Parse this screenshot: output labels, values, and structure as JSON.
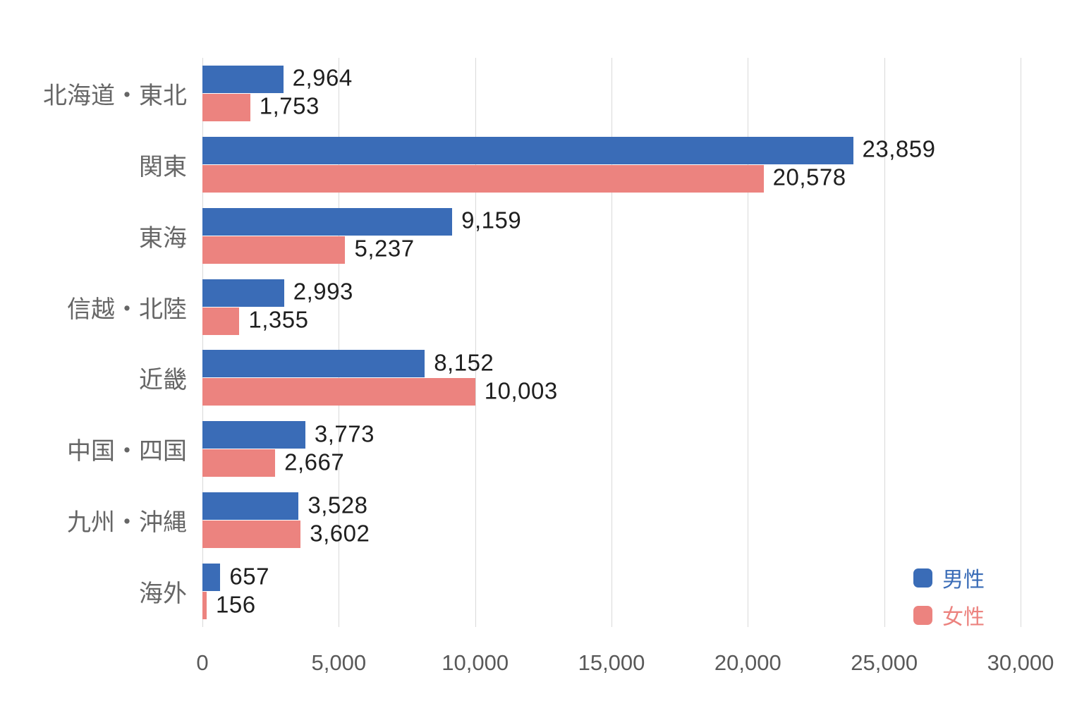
{
  "chart_data": {
    "type": "bar",
    "orientation": "horizontal",
    "title": "",
    "categories": [
      "北海道・東北",
      "関東",
      "東海",
      "信越・北陸",
      "近畿",
      "中国・四国",
      "九州・沖縄",
      "海外"
    ],
    "series": [
      {
        "name": "男性",
        "color": "#3A6CB7",
        "values": [
          2964,
          23859,
          9159,
          2993,
          8152,
          3773,
          3528,
          657
        ],
        "labels": [
          "2,964",
          "23,859",
          "9,159",
          "2,993",
          "8,152",
          "3,773",
          "3,528",
          "657"
        ]
      },
      {
        "name": "女性",
        "color": "#EC837F",
        "values": [
          1753,
          20578,
          5237,
          1355,
          10003,
          2667,
          3602,
          156
        ],
        "labels": [
          "1,753",
          "20,578",
          "5,237",
          "1,355",
          "10,003",
          "2,667",
          "3,602",
          "156"
        ]
      }
    ],
    "xlabel": "",
    "ylabel": "",
    "xlim": [
      0,
      30000
    ],
    "x_tick_values": [
      0,
      5000,
      10000,
      15000,
      20000,
      25000,
      30000
    ],
    "x_tick_labels": [
      "0",
      "5,000",
      "10,000",
      "15,000",
      "20,000",
      "25,000",
      "30,000"
    ],
    "grid": "vertical gridlines on",
    "legend_position": "bottom-right"
  },
  "colors": {
    "male_bar": "#3A6CB7",
    "female_bar": "#EC837F",
    "gridline": "#D9D9D9",
    "value_label": "#1F1F1F",
    "category_label": "#666666",
    "tick_label": "#595959",
    "background": "#FFFFFF"
  }
}
